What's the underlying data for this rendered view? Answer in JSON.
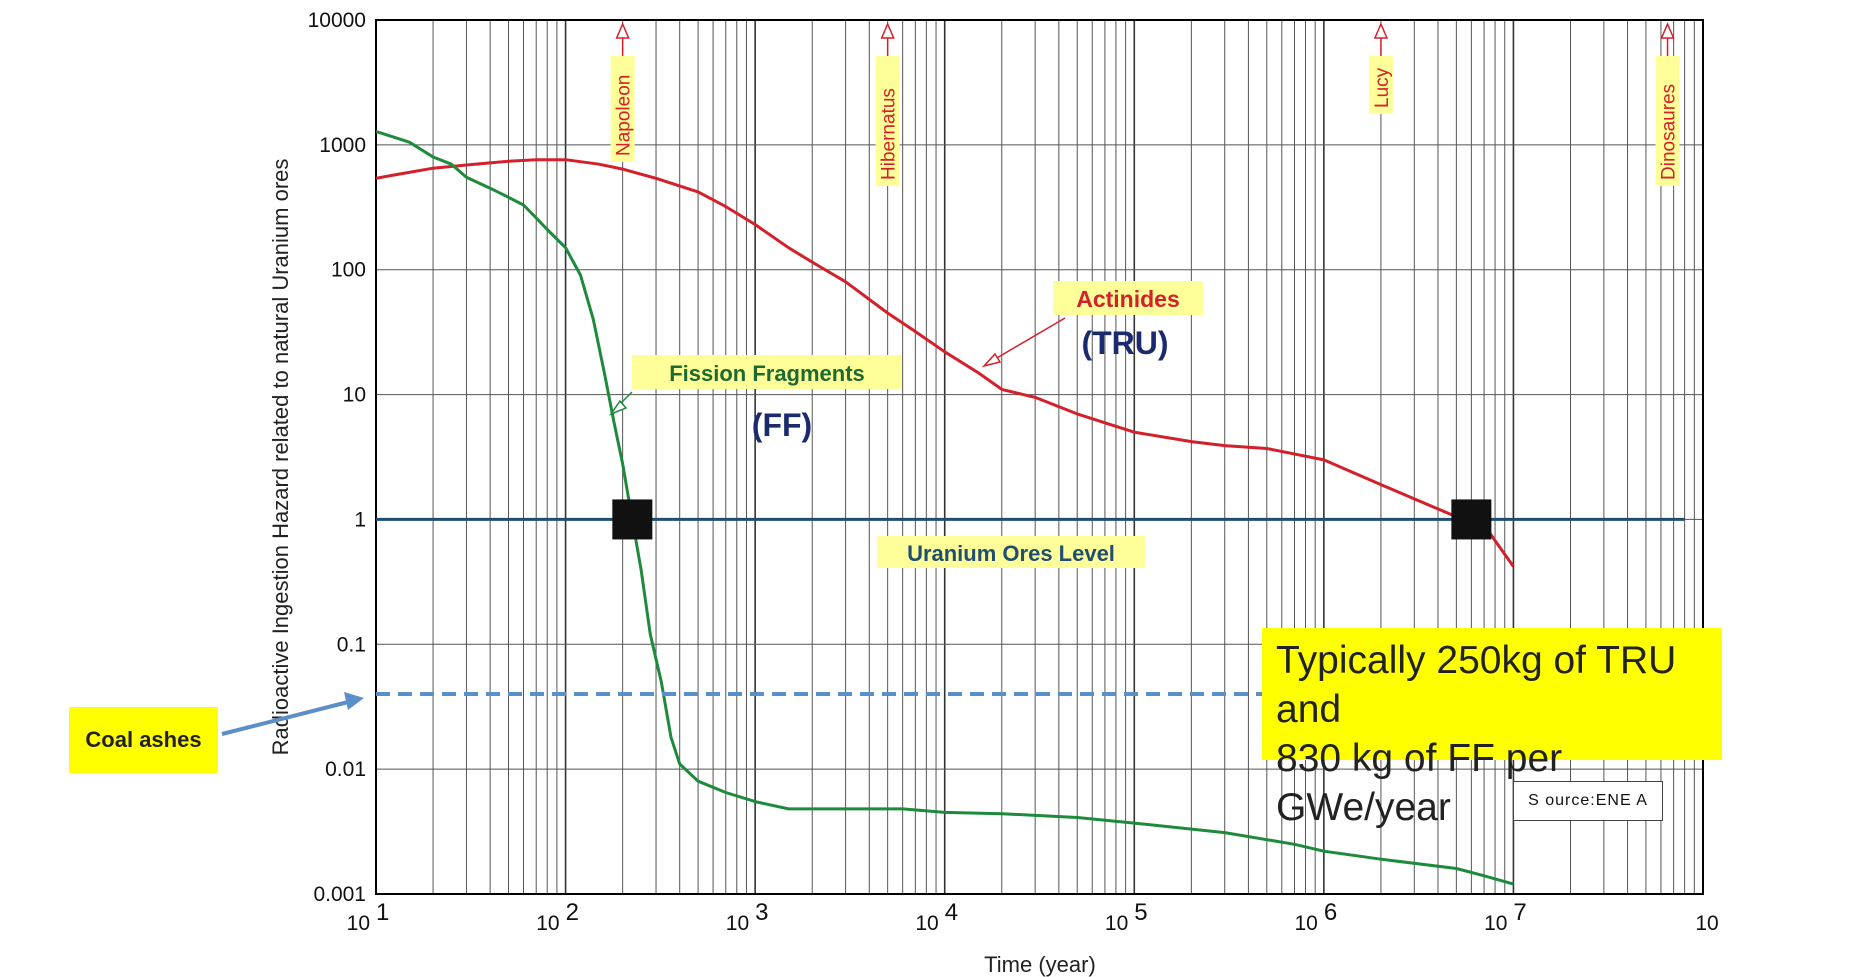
{
  "chart_data": {
    "type": "line",
    "title": "",
    "xlabel": "Time (year)",
    "ylabel": "Radioactive Ingestion Hazard related to natural Uranium ores",
    "xscale": "log",
    "yscale": "log",
    "xlim": [
      10,
      100000000
    ],
    "ylim": [
      0.001,
      10000
    ],
    "grid": true,
    "x_tick_labels": [
      {
        "base": "10",
        "exp": "1"
      },
      {
        "base": "10",
        "exp": "2"
      },
      {
        "base": "10",
        "exp": "3"
      },
      {
        "base": "10",
        "exp": "4"
      },
      {
        "base": "10",
        "exp": "5"
      },
      {
        "base": "10",
        "exp": "6"
      },
      {
        "base": "10",
        "exp": "7"
      },
      {
        "base": "10",
        "exp": ""
      }
    ],
    "y_tick_labels": [
      "10000",
      "1000",
      "100",
      "10",
      "1",
      "0.1",
      "0.01",
      "0.001"
    ],
    "series": [
      {
        "name": "Actinides",
        "sublabel": "(TRU)",
        "color": "#d4202a",
        "points": [
          [
            10,
            540
          ],
          [
            13,
            580
          ],
          [
            20,
            650
          ],
          [
            30,
            690
          ],
          [
            50,
            740
          ],
          [
            70,
            760
          ],
          [
            100,
            760
          ],
          [
            150,
            700
          ],
          [
            200,
            640
          ],
          [
            300,
            540
          ],
          [
            500,
            420
          ],
          [
            700,
            320
          ],
          [
            1000,
            230
          ],
          [
            1500,
            150
          ],
          [
            2000,
            115
          ],
          [
            3000,
            80
          ],
          [
            5000,
            45
          ],
          [
            7000,
            32
          ],
          [
            10000,
            22
          ],
          [
            15000,
            15
          ],
          [
            20000,
            11
          ],
          [
            30000,
            9.5
          ],
          [
            50000,
            7
          ],
          [
            100000,
            5
          ],
          [
            200000,
            4.2
          ],
          [
            300000,
            3.9
          ],
          [
            500000,
            3.7
          ],
          [
            1000000,
            3
          ],
          [
            2000000,
            1.9
          ],
          [
            5000000,
            1.05
          ],
          [
            7000000,
            0.9
          ],
          [
            10000000,
            0.42
          ]
        ]
      },
      {
        "name": "Fission Fragments",
        "sublabel": "(FF)",
        "color": "#1d8a3c",
        "points": [
          [
            10,
            1280
          ],
          [
            15,
            1050
          ],
          [
            20,
            800
          ],
          [
            25,
            700
          ],
          [
            30,
            550
          ],
          [
            40,
            450
          ],
          [
            50,
            380
          ],
          [
            60,
            330
          ],
          [
            70,
            260
          ],
          [
            80,
            210
          ],
          [
            100,
            150
          ],
          [
            120,
            90
          ],
          [
            140,
            40
          ],
          [
            160,
            15
          ],
          [
            180,
            6
          ],
          [
            200,
            2.8
          ],
          [
            220,
            1.2
          ],
          [
            250,
            0.4
          ],
          [
            280,
            0.12
          ],
          [
            320,
            0.05
          ],
          [
            360,
            0.018
          ],
          [
            400,
            0.011
          ],
          [
            500,
            0.008
          ],
          [
            700,
            0.0065
          ],
          [
            1000,
            0.0055
          ],
          [
            1500,
            0.0048
          ],
          [
            3000,
            0.0048
          ],
          [
            6000,
            0.0048
          ],
          [
            10000,
            0.0045
          ],
          [
            20000,
            0.0044
          ],
          [
            50000,
            0.0041
          ],
          [
            100000,
            0.0037
          ],
          [
            300000,
            0.0031
          ],
          [
            700000,
            0.0025
          ],
          [
            1000000,
            0.0022
          ],
          [
            2000000,
            0.0019
          ],
          [
            5000000,
            0.0016
          ],
          [
            7000000,
            0.0014
          ],
          [
            10000000,
            0.0012
          ]
        ]
      },
      {
        "name": "Uranium Ores Level",
        "color": "#1f4e73",
        "points": [
          [
            10,
            1
          ],
          [
            80000000,
            1
          ]
        ]
      },
      {
        "name": "Coal ashes",
        "color": "#5b8fc9",
        "dashed": true,
        "points": [
          [
            10,
            0.04
          ],
          [
            80000000,
            0.04
          ]
        ]
      }
    ],
    "crossing_markers": [
      [
        225,
        1
      ],
      [
        6000000,
        1
      ]
    ],
    "event_markers": [
      {
        "label": "Napoleon",
        "x": 200
      },
      {
        "label": "Hibernatus",
        "x": 5000
      },
      {
        "label": "Lucy",
        "x": 2000000
      },
      {
        "label": "Dinosaures",
        "x": 65000000
      }
    ],
    "annotations": {
      "actinides_label": "Actinides",
      "tru_label": "(TRU)",
      "ff_label": "Fission Fragments",
      "ff_short": "(FF)",
      "uranium_label": "Uranium Ores Level",
      "coal_label": "Coal ashes",
      "source": "S ource:ENE A",
      "note_line1": "Typically 250kg of TRU and",
      "note_line2": "830 kg of FF per GWe/year"
    },
    "colors": {
      "actinides": "#d4202a",
      "fission": "#1d8a3c",
      "uranium": "#1f4e73",
      "coal": "#5b8fc9",
      "highlight": "#ffff00",
      "label_bg": "#ffff99",
      "ff_text": "#1d6a30",
      "tru_text": "#1a2a6c"
    }
  }
}
